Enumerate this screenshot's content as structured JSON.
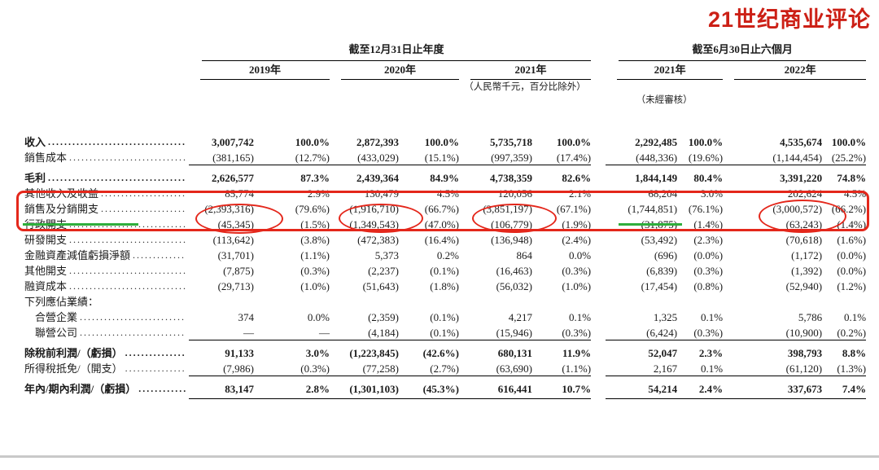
{
  "logo": {
    "text": "21世纪商业评论"
  },
  "colors": {
    "annotation_red": "#e4271b",
    "annotation_green": "#2fae3c",
    "logo_red": "#cc2016",
    "divider_gray": "#c9c9c9"
  },
  "header": {
    "annual_group": "截至12月31日止年度",
    "interim_group": "截至6月30日止六個月",
    "years": [
      "2019年",
      "2020年",
      "2021年",
      "2021年",
      "2022年"
    ],
    "currency_note": "（人民幣千元，百分比除外）",
    "unaudited_note": "（未經審核）"
  },
  "table": {
    "rows": [
      {
        "label": "收入",
        "classes": "bold",
        "cells": [
          "3,007,742",
          "100.0%",
          "2,872,393",
          "100.0%",
          "5,735,718",
          "100.0%",
          "2,292,485",
          "100.0%",
          "4,535,674",
          "100.0%"
        ]
      },
      {
        "label": "銷售成本",
        "classes": "",
        "cells": [
          "(381,165)",
          "(12.7%)",
          "(433,029)",
          "(15.1%)",
          "(997,359)",
          "(17.4%)",
          "(448,336)",
          "(19.6%)",
          "(1,144,454)",
          "(25.2%)"
        ]
      },
      {
        "label": "毛利",
        "classes": "bold line-above",
        "cells": [
          "2,626,577",
          "87.3%",
          "2,439,364",
          "84.9%",
          "4,738,359",
          "82.6%",
          "1,844,149",
          "80.4%",
          "3,391,220",
          "74.8%"
        ]
      },
      {
        "label": "其他收入及收益",
        "classes": "",
        "cells": [
          "85,774",
          "2.9%",
          "130,479",
          "4.5%",
          "120,056",
          "2.1%",
          "68,204",
          "3.0%",
          "202,624",
          "4.5%"
        ]
      },
      {
        "label": "銷售及分銷開支",
        "classes": "",
        "cells": [
          "(2,393,316)",
          "(79.6%)",
          "(1,916,710)",
          "(66.7%)",
          "(3,851,197)",
          "(67.1%)",
          "(1,744,851)",
          "(76.1%)",
          "(3,000,572)",
          "(66.2%)"
        ]
      },
      {
        "label": "行政開支",
        "classes": "",
        "cells": [
          "(45,345)",
          "(1.5%)",
          "(1,349,543)",
          "(47.0%)",
          "(106,779)",
          "(1.9%)",
          "(31,875)",
          "(1.4%)",
          "(63,243)",
          "(1.4%)"
        ]
      },
      {
        "label": "研發開支",
        "classes": "",
        "cells": [
          "(113,642)",
          "(3.8%)",
          "(472,383)",
          "(16.4%)",
          "(136,948)",
          "(2.4%)",
          "(53,492)",
          "(2.3%)",
          "(70,618)",
          "(1.6%)"
        ]
      },
      {
        "label": "金融資產減值虧損淨額",
        "classes": "",
        "cells": [
          "(31,701)",
          "(1.1%)",
          "5,373",
          "0.2%",
          "864",
          "0.0%",
          "(696)",
          "(0.0%)",
          "(1,172)",
          "(0.0%)"
        ]
      },
      {
        "label": "其他開支",
        "classes": "",
        "cells": [
          "(7,875)",
          "(0.3%)",
          "(2,237)",
          "(0.1%)",
          "(16,463)",
          "(0.3%)",
          "(6,839)",
          "(0.3%)",
          "(1,392)",
          "(0.0%)"
        ]
      },
      {
        "label": "融資成本",
        "classes": "",
        "cells": [
          "(29,713)",
          "(1.0%)",
          "(51,643)",
          "(1.8%)",
          "(56,032)",
          "(1.0%)",
          "(17,454)",
          "(0.8%)",
          "(52,940)",
          "(1.2%)"
        ]
      },
      {
        "label": "下列應佔業績：",
        "classes": "",
        "dots": false,
        "cells": []
      },
      {
        "label": "合營企業",
        "classes": "",
        "indent": true,
        "cells": [
          "374",
          "0.0%",
          "(2,359)",
          "(0.1%)",
          "4,217",
          "0.1%",
          "1,325",
          "0.1%",
          "5,786",
          "0.1%"
        ]
      },
      {
        "label": "聯營公司",
        "classes": "",
        "indent": true,
        "cells": [
          "—",
          "—",
          "(4,184)",
          "(0.1%)",
          "(15,946)",
          "(0.3%)",
          "(6,424)",
          "(0.3%)",
          "(10,900)",
          "(0.2%)"
        ]
      },
      {
        "label": "除稅前利潤/（虧損）",
        "classes": "bold line-above",
        "cells": [
          "91,133",
          "3.0%",
          "(1,223,845)",
          "(42.6%)",
          "680,131",
          "11.9%",
          "52,047",
          "2.3%",
          "398,793",
          "8.8%"
        ]
      },
      {
        "label": "所得稅抵免/（開支）",
        "classes": "",
        "cells": [
          "(7,986)",
          "(0.3%)",
          "(77,258)",
          "(2.7%)",
          "(63,690)",
          "(1.1%)",
          "2,167",
          "0.1%",
          "(61,120)",
          "(1.3%)"
        ]
      },
      {
        "label": "年內/期內利潤/（虧損）",
        "classes": "bold line-above line-below",
        "cells": [
          "83,147",
          "2.8%",
          "(1,301,103)",
          "(45.3%)",
          "616,441",
          "10.7%",
          "54,214",
          "2.4%",
          "337,673",
          "7.4%"
        ]
      }
    ]
  }
}
